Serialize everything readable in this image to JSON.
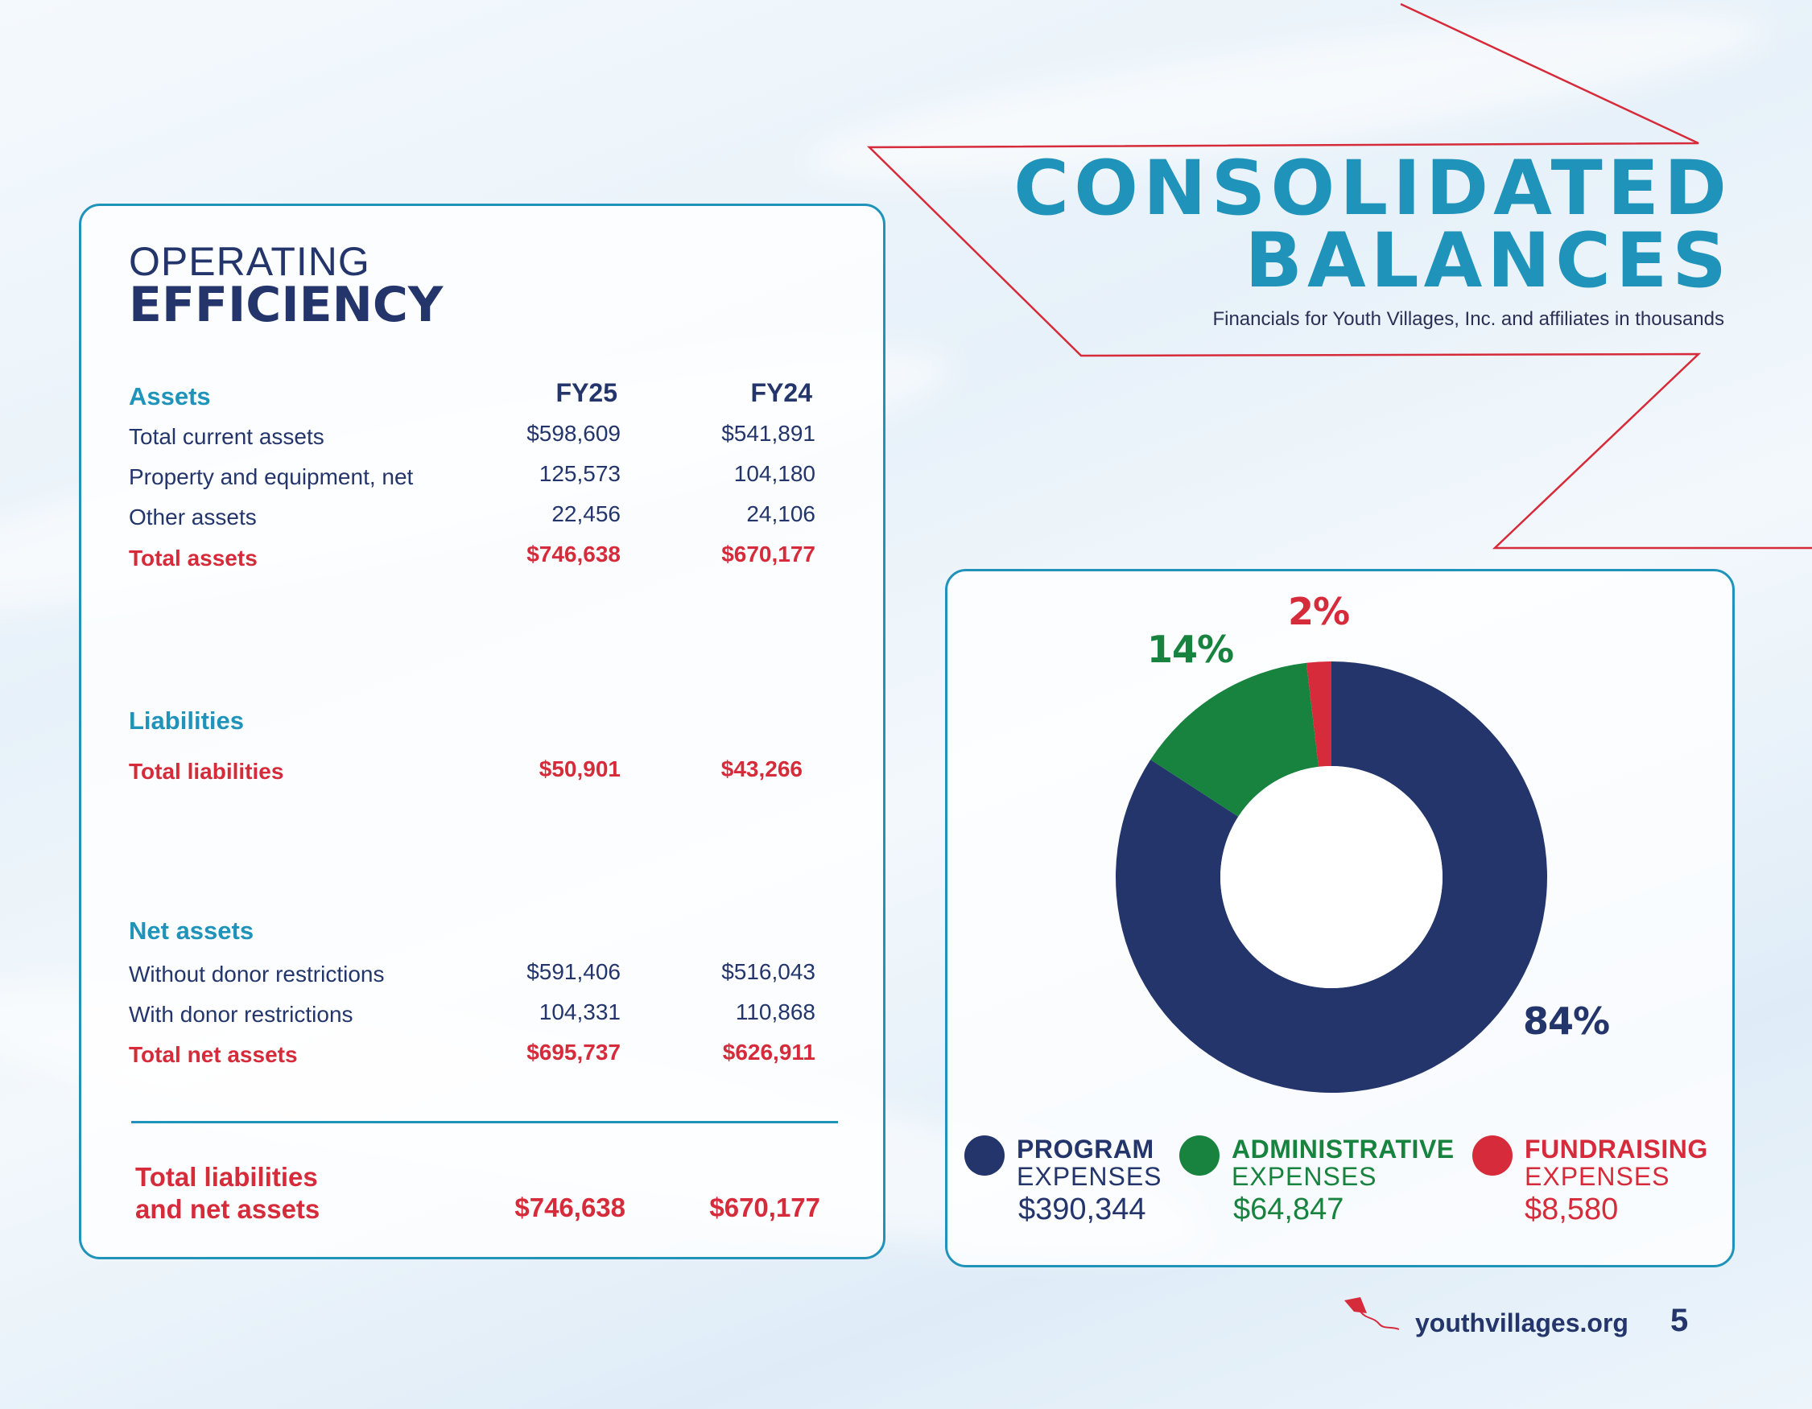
{
  "header": {
    "title_line1": "CONSOLIDATED",
    "title_line2": "BALANCES",
    "subtitle": "Financials for Youth Villages, Inc. and affiliates in thousands"
  },
  "operating": {
    "title_line1": "OPERATING",
    "title_line2": "EFFICIENCY",
    "col_fy25": "FY25",
    "col_fy24": "FY24",
    "assets": {
      "heading": "Assets",
      "rows": [
        {
          "label": "Total current assets",
          "fy25": "$598,609",
          "fy24": "$541,891"
        },
        {
          "label": "Property and equipment, net",
          "fy25": "125,573",
          "fy24": "104,180"
        },
        {
          "label": "Other assets",
          "fy25": "22,456",
          "fy24": "24,106"
        }
      ],
      "total": {
        "label": "Total assets",
        "fy25": "$746,638",
        "fy24": "$670,177"
      }
    },
    "liabilities": {
      "heading": "Liabilities",
      "total": {
        "label": "Total liabilities",
        "fy25": "$50,901",
        "fy24": "$43,266"
      }
    },
    "net_assets": {
      "heading": "Net assets",
      "rows": [
        {
          "label": "Without donor restrictions",
          "fy25": "$591,406",
          "fy24": "$516,043"
        },
        {
          "label": "With donor restrictions",
          "fy25": "104,331",
          "fy24": "110,868"
        }
      ],
      "total": {
        "label": "Total net assets",
        "fy25": "$695,737",
        "fy24": "$626,911"
      }
    },
    "grand_total": {
      "label_line1": "Total liabilities",
      "label_line2": "and net assets",
      "fy25": "$746,638",
      "fy24": "$670,177"
    }
  },
  "chart_data": {
    "type": "pie",
    "donut": true,
    "title": "",
    "categories": [
      "Program expenses",
      "Administrative expenses",
      "Fundraising expenses"
    ],
    "values": [
      390344,
      64847,
      8580
    ],
    "percent_labels": [
      "84%",
      "14%",
      "2%"
    ],
    "colors": [
      "#23356b",
      "#17833f",
      "#d62b3a"
    ],
    "legend": [
      {
        "name_bold": "PROGRAM",
        "name_light": "EXPENSES",
        "value": "$390,344",
        "color": "#23356b"
      },
      {
        "name_bold": "ADMINISTRATIVE",
        "name_light": "EXPENSES",
        "value": "$64,847",
        "color": "#17833f"
      },
      {
        "name_bold": "FUNDRAISING",
        "name_light": "EXPENSES",
        "value": "$8,580",
        "color": "#d62b3a"
      }
    ],
    "legend_placement": "bottom"
  },
  "footer": {
    "url": "youthvillages.org",
    "page_number": "5"
  },
  "colors": {
    "navy": "#23356b",
    "teal": "#1f93b9",
    "red": "#d62b3a",
    "green": "#17833f"
  },
  "icons": {
    "logo": "kite-icon"
  }
}
